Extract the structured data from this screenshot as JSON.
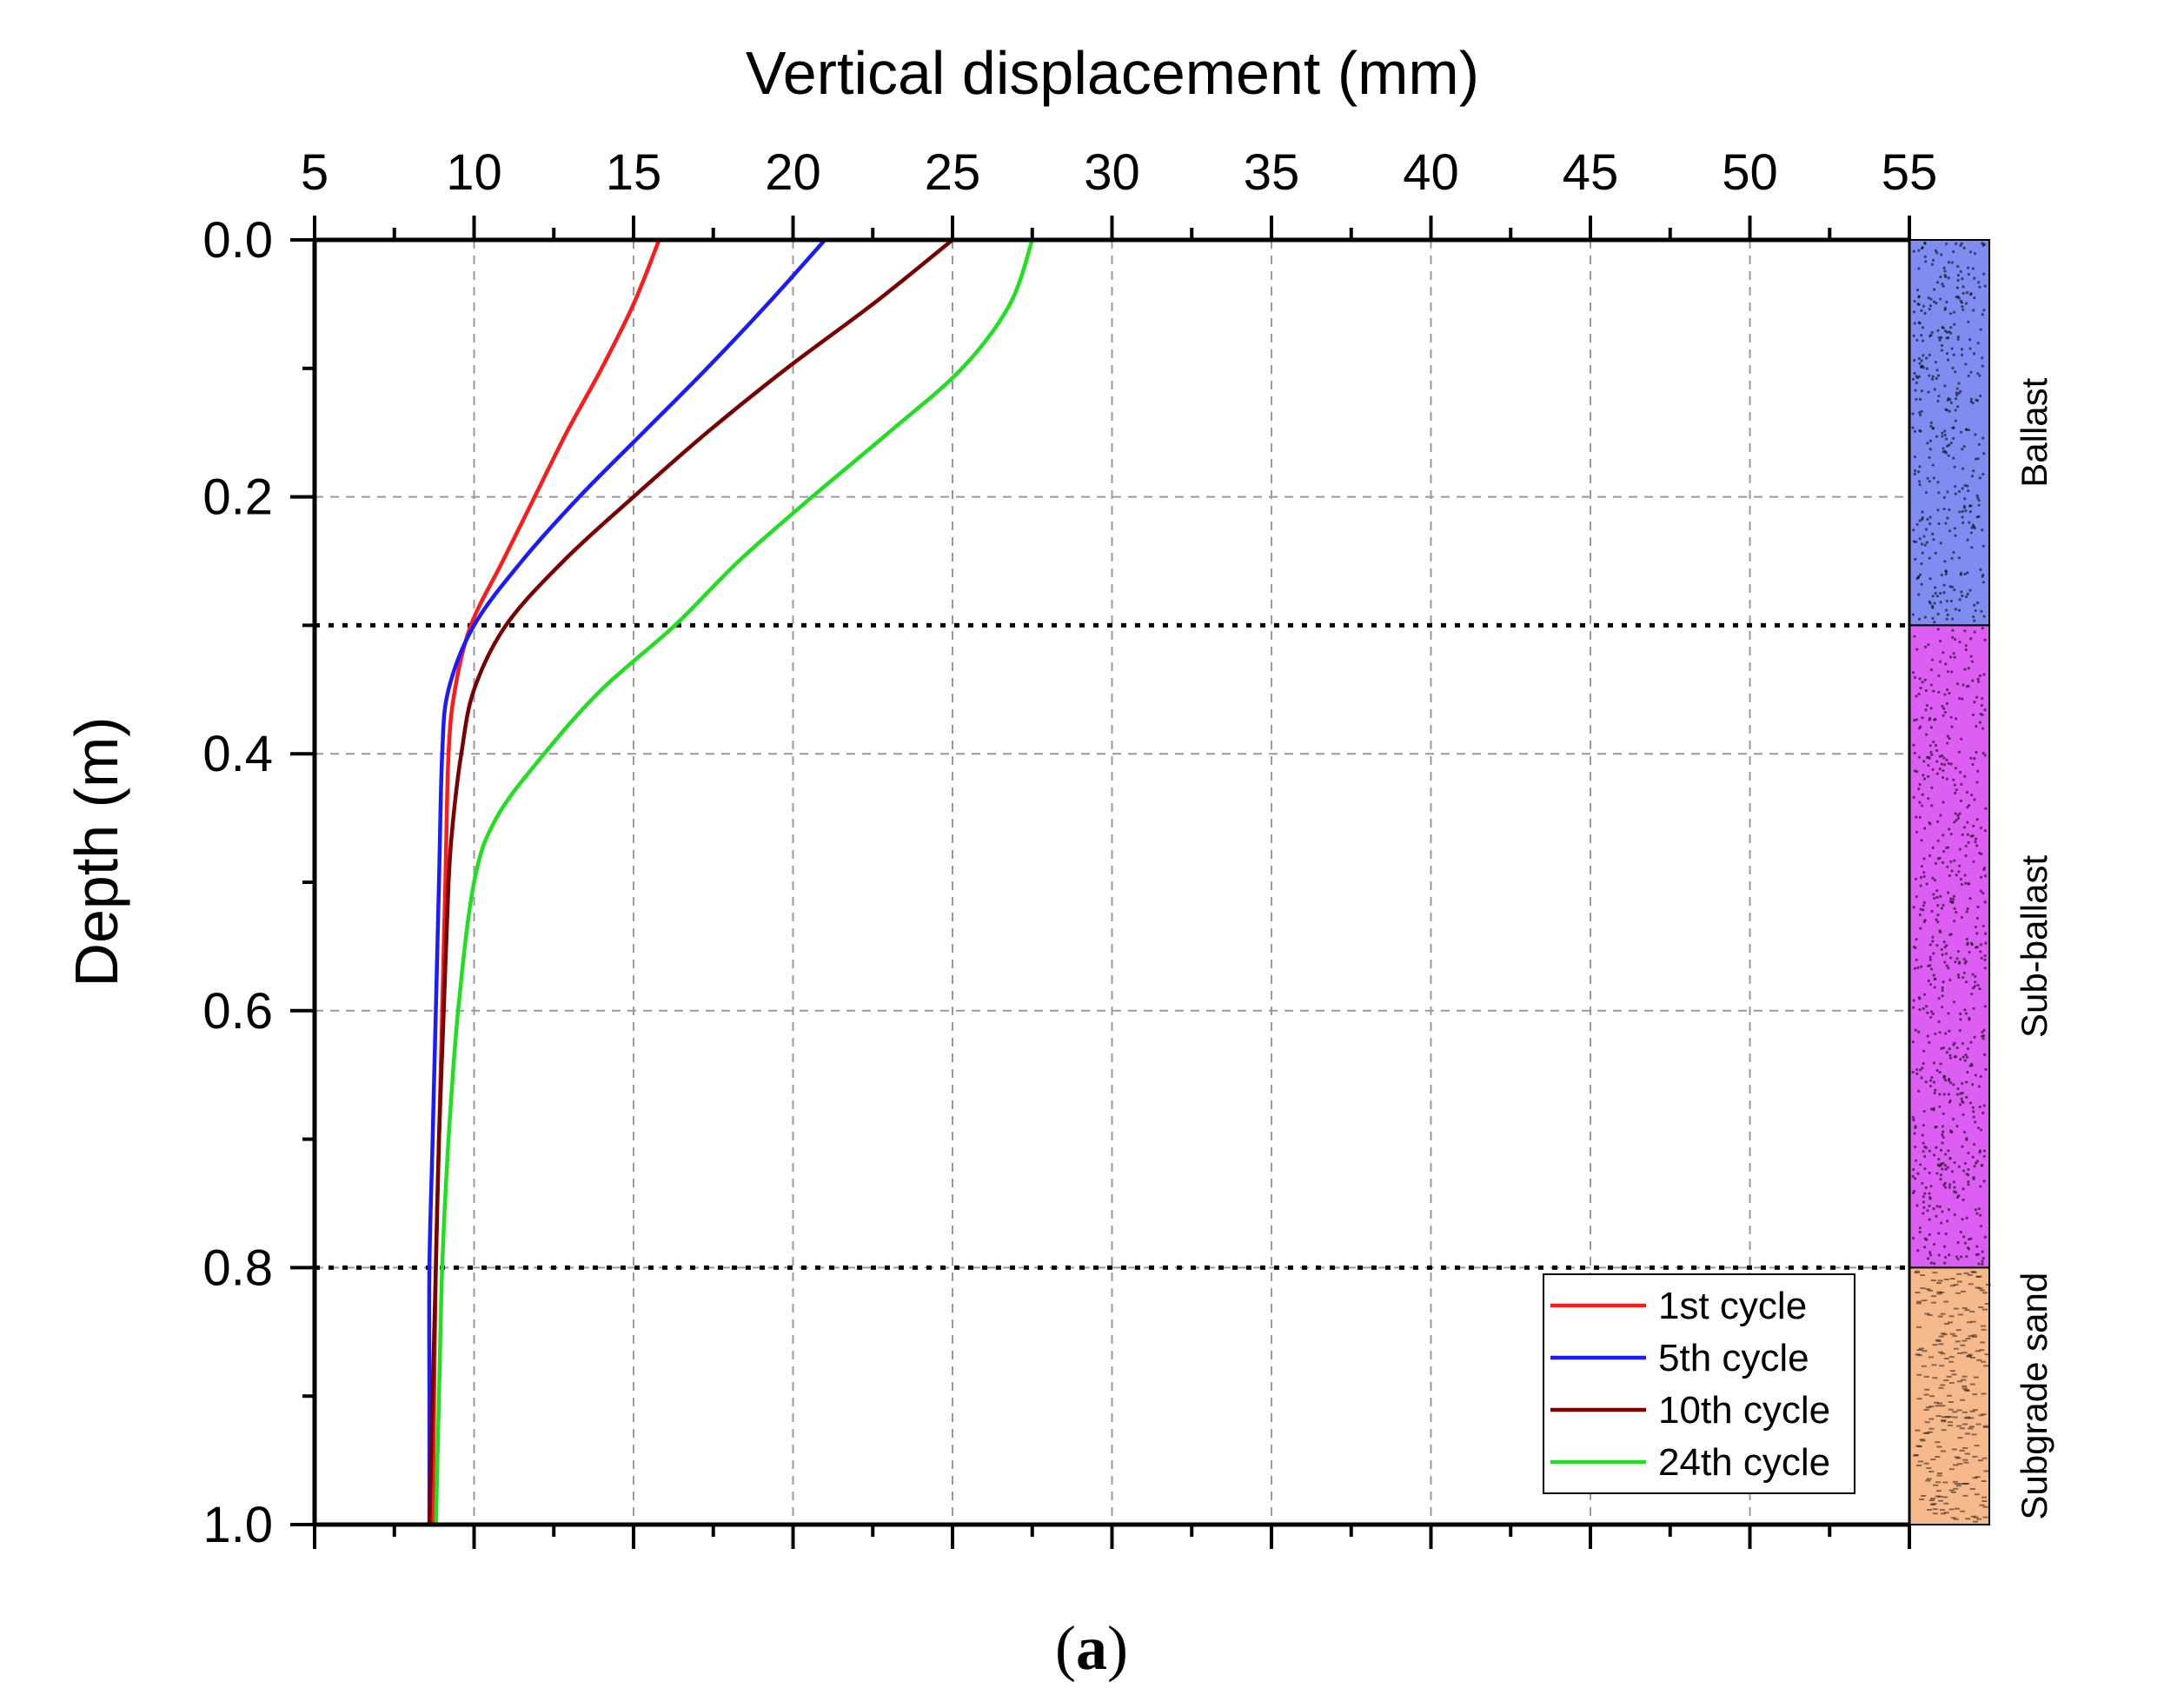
{
  "chart_data": {
    "type": "line",
    "title": "",
    "xlabel": "Vertical displacement (mm)",
    "ylabel": "Depth (m)",
    "xlim": [
      5,
      55
    ],
    "ylim": [
      0.0,
      1.0
    ],
    "x_axis_position": "top",
    "y_inverted": true,
    "grid": true,
    "x_ticks": [
      5,
      10,
      15,
      20,
      25,
      30,
      35,
      40,
      45,
      50,
      55
    ],
    "x_tick_labels": [
      "5",
      "10",
      "15",
      "20",
      "25",
      "30",
      "35",
      "40",
      "45",
      "50",
      "55"
    ],
    "y_ticks": [
      0.0,
      0.2,
      0.4,
      0.6,
      0.8,
      1.0
    ],
    "y_tick_labels": [
      "0.0",
      "0.2",
      "0.4",
      "0.6",
      "0.8",
      "1.0"
    ],
    "layer_boundaries": [
      0.3,
      0.8
    ],
    "layers": [
      {
        "name": "Ballast",
        "top": 0.0,
        "bottom": 0.3,
        "color": "#7f8cf0"
      },
      {
        "name": "Sub-ballast",
        "top": 0.3,
        "bottom": 0.8,
        "color": "#dc5ef2"
      },
      {
        "name": "Subgrade sand",
        "top": 0.8,
        "bottom": 1.0,
        "color": "#f6b98b"
      }
    ],
    "series": [
      {
        "name": "1st cycle",
        "color": "#ff1a1a",
        "depth": [
          0.0,
          0.05,
          0.1,
          0.15,
          0.2,
          0.25,
          0.3,
          0.35,
          0.4,
          0.5,
          0.6,
          0.7,
          0.8,
          0.9,
          1.0
        ],
        "displacement": [
          15.8,
          15.0,
          14.0,
          12.9,
          11.9,
          10.9,
          9.9,
          9.4,
          9.2,
          9.1,
          9.0,
          8.9,
          8.8,
          8.75,
          8.7
        ]
      },
      {
        "name": "5th cycle",
        "color": "#1a1aff",
        "depth": [
          0.0,
          0.05,
          0.1,
          0.15,
          0.2,
          0.25,
          0.3,
          0.35,
          0.4,
          0.5,
          0.6,
          0.7,
          0.8,
          0.9,
          1.0
        ],
        "displacement": [
          21.0,
          19.2,
          17.3,
          15.3,
          13.3,
          11.5,
          10.0,
          9.2,
          9.0,
          8.9,
          8.8,
          8.7,
          8.6,
          8.6,
          8.6
        ]
      },
      {
        "name": "10th cycle",
        "color": "#7a0000",
        "depth": [
          0.0,
          0.05,
          0.1,
          0.15,
          0.2,
          0.25,
          0.3,
          0.35,
          0.4,
          0.45,
          0.5,
          0.6,
          0.7,
          0.8,
          0.9,
          1.0
        ],
        "displacement": [
          25.0,
          22.5,
          19.8,
          17.3,
          15.0,
          12.8,
          11.0,
          10.0,
          9.6,
          9.35,
          9.2,
          9.05,
          8.9,
          8.8,
          8.7,
          8.6
        ]
      },
      {
        "name": "24th cycle",
        "color": "#1ee01e",
        "depth": [
          0.0,
          0.05,
          0.1,
          0.15,
          0.2,
          0.25,
          0.3,
          0.35,
          0.4,
          0.45,
          0.5,
          0.6,
          0.7,
          0.8,
          0.9,
          1.0
        ],
        "displacement": [
          27.5,
          26.8,
          25.3,
          23.0,
          20.6,
          18.3,
          16.3,
          14.0,
          12.2,
          10.7,
          10.0,
          9.5,
          9.2,
          9.0,
          8.9,
          8.8
        ]
      }
    ],
    "legend": {
      "position": "bottom-right"
    }
  },
  "caption": {
    "open": "(",
    "letter": "a",
    "close": ")"
  }
}
